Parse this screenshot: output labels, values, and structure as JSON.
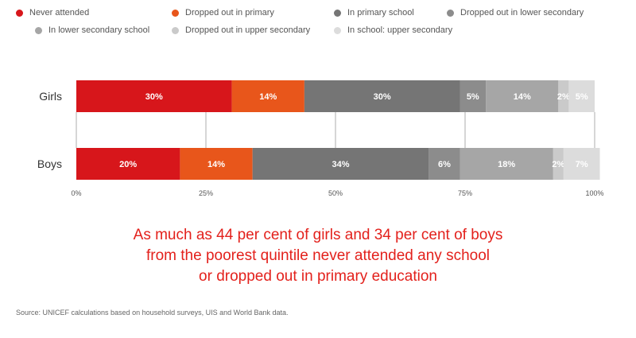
{
  "legend": [
    {
      "label": "Never attended",
      "color": "#d7161b"
    },
    {
      "label": "Dropped out in primary",
      "color": "#e8561b"
    },
    {
      "label": "In primary school",
      "color": "#757575"
    },
    {
      "label": "Dropped out in lower secondary",
      "color": "#8c8c8c"
    },
    {
      "label": "In lower secondary school",
      "color": "#a6a6a6"
    },
    {
      "label": "Dropped out in upper secondary",
      "color": "#cacaca"
    },
    {
      "label": "In school: upper secondary",
      "color": "#dcdcdc"
    }
  ],
  "chart_data": {
    "type": "bar",
    "orientation": "horizontal",
    "stacked": true,
    "categories": [
      "Girls",
      "Boys"
    ],
    "series": [
      {
        "name": "Never attended",
        "values": [
          30,
          20
        ],
        "labels": [
          "30%",
          "20%"
        ]
      },
      {
        "name": "Dropped out in primary",
        "values": [
          14,
          14
        ],
        "labels": [
          "14%",
          "14%"
        ]
      },
      {
        "name": "In primary school",
        "values": [
          30,
          34
        ],
        "labels": [
          "30%",
          "34%"
        ]
      },
      {
        "name": "Dropped out in lower secondary",
        "values": [
          5,
          6
        ],
        "labels": [
          "5%",
          "6%"
        ]
      },
      {
        "name": "In lower secondary school",
        "values": [
          14,
          18
        ],
        "labels": [
          "14%",
          "18%"
        ]
      },
      {
        "name": "Dropped out in upper secondary",
        "values": [
          2,
          2
        ],
        "labels": [
          "2%",
          "2%"
        ]
      },
      {
        "name": "In school: upper secondary",
        "values": [
          5,
          7
        ],
        "labels": [
          "5%",
          "7%"
        ]
      }
    ],
    "xticks": [
      "0%",
      "25%",
      "50%",
      "75%",
      "100%"
    ],
    "xlim": [
      0,
      100
    ],
    "grid": true,
    "legend_position": "top"
  },
  "headline": [
    "As much as 44 per cent of girls and 34 per cent of boys",
    "from the poorest quintile never attended any school",
    "or dropped out in primary education"
  ],
  "source": "Source: UNICEF calculations based on household surveys, UIS and World Bank data."
}
